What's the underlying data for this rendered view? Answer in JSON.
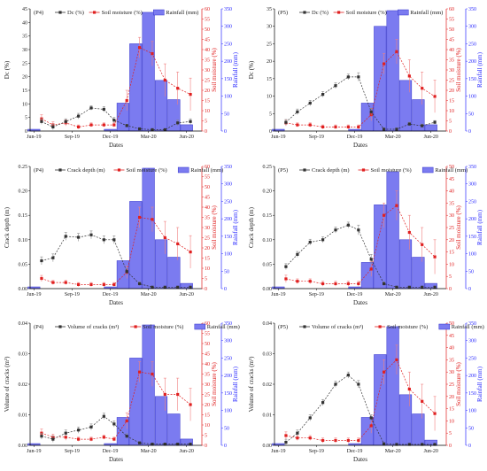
{
  "colors": {
    "dc": "#333333",
    "soil": "#e02020",
    "rain_fill": "#7b7bf0",
    "rain_edge": "#3333cc",
    "axis_right_red": "#e02020",
    "axis_right_blue": "#2a2aff"
  },
  "legend": {
    "soil": "Soil moisture (%)",
    "rain": "Rainfall (mm)"
  },
  "chart_data": [
    {
      "type": "bar+line",
      "panel": "P4",
      "tag": "(P4)",
      "primary_label": "Dc (%)",
      "legend_primary": "Dc (%)",
      "ylabel": "Dc (%)",
      "ylabel_soil": "Soil moisture (%)",
      "ylabel_rain": "Rainfall (mm)",
      "xlabel": "Dates",
      "ylim": [
        0,
        45
      ],
      "yticks": [
        0,
        5,
        10,
        15,
        20,
        25,
        30,
        35,
        40,
        45
      ],
      "ytick_labels": [
        "0",
        "5",
        "10",
        "15",
        "20",
        "25",
        "30",
        "35",
        "40",
        "45"
      ],
      "soil_lim": [
        0,
        60
      ],
      "soil_ticks": [
        0,
        5,
        10,
        15,
        20,
        25,
        30,
        35,
        40,
        45,
        50,
        55,
        60
      ],
      "rain_lim": [
        0,
        350
      ],
      "rain_ticks": [
        0,
        50,
        100,
        150,
        200,
        250,
        300,
        350
      ],
      "x_tick_labels": [
        "Jun-19",
        "Sep-19",
        "Dec-19",
        "Mar-20",
        "Jun-20"
      ],
      "x_tick_pos": [
        0,
        3,
        6,
        9,
        12
      ],
      "bar_months": [
        0,
        1,
        2,
        3,
        4,
        5,
        6,
        7,
        8,
        9,
        10,
        11,
        12
      ],
      "rainfall": [
        5,
        0,
        0,
        0,
        0,
        0,
        5,
        80,
        250,
        340,
        145,
        90,
        18
      ],
      "primary_x": [
        0.6,
        1.5,
        2.5,
        3.5,
        4.5,
        5.5,
        6.3,
        7.3,
        8.3,
        9.3,
        10.3,
        11.3,
        12.3
      ],
      "primary": [
        3.5,
        1.5,
        3.5,
        5.5,
        8.5,
        8,
        4,
        2,
        0.8,
        0.5,
        0.5,
        3,
        3.5
      ],
      "primary_err": [
        1,
        1,
        1,
        1,
        0.8,
        1,
        1,
        0.5,
        0.4,
        0.3,
        0.3,
        1,
        1
      ],
      "soil_x": [
        0.6,
        1.5,
        2.5,
        3.5,
        4.5,
        5.5,
        6.3,
        7.3,
        8.3,
        9.3,
        10.3,
        11.3,
        12.3
      ],
      "soil": [
        6,
        3,
        4,
        2,
        3,
        3,
        3,
        15,
        41,
        38,
        25,
        21,
        18
      ],
      "soil_err": [
        2,
        1.5,
        1.5,
        1,
        1,
        1,
        1,
        5,
        5,
        6,
        8,
        8,
        8
      ]
    },
    {
      "type": "bar+line",
      "panel": "P5",
      "tag": "(P5)",
      "primary_label": "Dc (%)",
      "legend_primary": "Dc (%)",
      "ylabel": "Dc (%)",
      "ylabel_soil": "Soil moisture (%)",
      "ylabel_rain": "Rainfall (mm)",
      "xlabel": "Dates",
      "ylim": [
        0,
        35
      ],
      "yticks": [
        0,
        5,
        10,
        15,
        20,
        25,
        30,
        35
      ],
      "ytick_labels": [
        "0",
        "5",
        "10",
        "15",
        "20",
        "25",
        "30",
        "35"
      ],
      "soil_lim": [
        0,
        60
      ],
      "soil_ticks": [
        0,
        5,
        10,
        15,
        20,
        25,
        30,
        35,
        40,
        45,
        50,
        55,
        60
      ],
      "rain_lim": [
        0,
        350
      ],
      "rain_ticks": [
        0,
        50,
        100,
        150,
        200,
        250,
        300,
        350
      ],
      "x_tick_labels": [
        "Jun-19",
        "Sep-19",
        "Dec-19",
        "Mar-20",
        "Jun-20"
      ],
      "x_tick_pos": [
        0,
        3,
        6,
        9,
        12
      ],
      "bar_months": [
        0,
        1,
        2,
        3,
        4,
        5,
        6,
        7,
        8,
        9,
        10,
        11,
        12
      ],
      "rainfall": [
        5,
        0,
        0,
        0,
        0,
        0,
        5,
        80,
        300,
        345,
        145,
        90,
        18
      ],
      "primary_x": [
        0.6,
        1.5,
        2.5,
        3.5,
        4.5,
        5.5,
        6.3,
        7.3,
        8.3,
        9.3,
        10.3,
        11.3,
        12.3
      ],
      "primary": [
        2.5,
        5.5,
        8,
        10.5,
        13,
        15.5,
        15.5,
        5.5,
        0.5,
        0.5,
        2,
        1.5,
        2.5
      ],
      "primary_err": [
        0.8,
        0.8,
        0.8,
        0.8,
        0.8,
        0.8,
        1.2,
        1,
        0.4,
        0.4,
        0.5,
        0.5,
        0.5
      ],
      "soil_x": [
        0.6,
        1.5,
        2.5,
        3.5,
        4.5,
        5.5,
        6.3,
        7.3,
        8.3,
        9.3,
        10.3,
        11.3,
        12.3
      ],
      "soil": [
        4,
        3,
        3,
        2,
        2,
        2,
        2,
        8,
        33,
        39,
        27,
        21,
        17
      ],
      "soil_err": [
        1.5,
        1,
        1,
        1,
        1,
        1,
        1,
        3,
        5,
        6,
        8,
        8,
        8
      ]
    },
    {
      "type": "bar+line",
      "panel": "P4",
      "tag": "(P4)",
      "primary_label": "Crack depth (m)",
      "legend_primary": "Crack depth (m)",
      "ylabel": "Crack depth (m)",
      "ylabel_soil": "Soil moisture (%)",
      "ylabel_rain": "Rainfall (mm)",
      "xlabel": "Dates",
      "ylim": [
        0,
        0.25
      ],
      "yticks": [
        0,
        0.05,
        0.1,
        0.15,
        0.2,
        0.25
      ],
      "ytick_labels": [
        "0.00",
        "0.05",
        "0.10",
        "0.15",
        "0.20",
        "0.25"
      ],
      "soil_lim": [
        0,
        60
      ],
      "soil_ticks": [
        0,
        5,
        10,
        15,
        20,
        25,
        30,
        35,
        40,
        45,
        50,
        55,
        60
      ],
      "rain_lim": [
        0,
        350
      ],
      "rain_ticks": [
        0,
        50,
        100,
        150,
        200,
        250,
        300,
        350
      ],
      "x_tick_labels": [
        "Jun-19",
        "Sep-19",
        "Dec-19",
        "Mar-20",
        "Jun-20"
      ],
      "x_tick_pos": [
        0,
        3,
        6,
        9,
        12
      ],
      "bar_months": [
        0,
        1,
        2,
        3,
        4,
        5,
        6,
        7,
        8,
        9,
        10,
        11,
        12
      ],
      "rainfall": [
        5,
        0,
        0,
        0,
        0,
        0,
        5,
        80,
        250,
        345,
        140,
        90,
        15
      ],
      "primary_x": [
        0.6,
        1.5,
        2.5,
        3.5,
        4.5,
        5.5,
        6.3,
        7.3,
        8.3,
        9.3,
        10.3,
        11.3,
        12.3
      ],
      "primary": [
        0.057,
        0.063,
        0.107,
        0.105,
        0.11,
        0.1,
        0.1,
        0.035,
        0.01,
        0.003,
        0.003,
        0.003,
        0.003
      ],
      "primary_err": [
        0.008,
        0.008,
        0.008,
        0.008,
        0.008,
        0.008,
        0.008,
        0.006,
        0.004,
        0.002,
        0.002,
        0.002,
        0.002
      ],
      "soil_x": [
        0.6,
        1.5,
        2.5,
        3.5,
        4.5,
        5.5,
        6.3,
        7.3,
        8.3,
        9.3,
        10.3,
        11.3,
        12.3
      ],
      "soil": [
        5,
        3,
        3,
        2,
        2,
        2,
        2,
        8,
        35,
        34,
        25,
        22,
        18
      ],
      "soil_err": [
        1.5,
        1,
        1,
        1,
        1,
        1,
        1,
        3,
        5,
        6,
        8,
        8,
        8
      ]
    },
    {
      "type": "bar+line",
      "panel": "P5",
      "tag": "(P5)",
      "primary_label": "Crack depth (m)",
      "legend_primary": "Crack depth (m)",
      "ylabel": "Crack depth (m)",
      "ylabel_soil": "Soil moisture (%)",
      "ylabel_rain": "Rainfall (mm)",
      "xlabel": "Dates",
      "ylim": [
        0,
        0.25
      ],
      "yticks": [
        0,
        0.05,
        0.1,
        0.15,
        0.2,
        0.25
      ],
      "ytick_labels": [
        "0.00",
        "0.05",
        "0.10",
        "0.15",
        "0.20",
        "0.25"
      ],
      "soil_lim": [
        0,
        50
      ],
      "soil_ticks": [
        0,
        5,
        10,
        15,
        20,
        25,
        30,
        35,
        40,
        45,
        50
      ],
      "rain_lim": [
        0,
        350
      ],
      "rain_ticks": [
        0,
        50,
        100,
        150,
        200,
        250,
        300,
        350
      ],
      "x_tick_labels": [
        "Jun-19",
        "Sep-19",
        "Dec-19",
        "Mar-20",
        "Jun-20"
      ],
      "x_tick_pos": [
        0,
        3,
        6,
        9,
        12
      ],
      "bar_months": [
        0,
        1,
        2,
        3,
        4,
        5,
        6,
        7,
        8,
        9,
        10,
        11,
        12
      ],
      "rainfall": [
        5,
        0,
        0,
        0,
        0,
        0,
        5,
        75,
        240,
        335,
        140,
        90,
        15
      ],
      "primary_x": [
        0.6,
        1.5,
        2.5,
        3.5,
        4.5,
        5.5,
        6.3,
        7.3,
        8.3,
        9.3,
        10.3,
        11.3,
        12.3
      ],
      "primary": [
        0.045,
        0.07,
        0.095,
        0.1,
        0.12,
        0.13,
        0.12,
        0.06,
        0.01,
        0.003,
        0.003,
        0.003,
        0.003
      ],
      "primary_err": [
        0.006,
        0.006,
        0.006,
        0.006,
        0.006,
        0.006,
        0.01,
        0.01,
        0.004,
        0.002,
        0.002,
        0.002,
        0.002
      ],
      "soil_x": [
        0.6,
        1.5,
        2.5,
        3.5,
        4.5,
        5.5,
        6.3,
        7.3,
        8.3,
        9.3,
        10.3,
        11.3,
        12.3
      ],
      "soil": [
        4,
        3,
        3,
        2,
        2,
        2,
        2,
        8,
        30,
        34,
        23,
        18,
        13
      ],
      "soil_err": [
        1.5,
        1,
        1,
        1,
        1,
        1,
        1,
        3,
        5,
        6,
        7,
        7,
        7
      ]
    },
    {
      "type": "bar+line",
      "panel": "P4",
      "tag": "(P4)",
      "primary_label": "Volume of cracks (m³)",
      "legend_primary": "Volume of cracks (m³)",
      "ylabel": "Volume of cracks (m³)",
      "ylabel_soil": "Soil moisture (%)",
      "ylabel_rain": "Rainfall (mm)",
      "xlabel": "Dates",
      "ylim": [
        0,
        0.04
      ],
      "yticks": [
        0,
        0.01,
        0.02,
        0.03,
        0.04
      ],
      "ytick_labels": [
        "0.00",
        "0.01",
        "0.02",
        "0.03",
        "0.04"
      ],
      "soil_lim": [
        0,
        60
      ],
      "soil_ticks": [
        0,
        5,
        10,
        15,
        20,
        25,
        30,
        35,
        40,
        45,
        50,
        55,
        60
      ],
      "rain_lim": [
        0,
        350
      ],
      "rain_ticks": [
        0,
        50,
        100,
        150,
        200,
        250,
        300,
        350
      ],
      "x_tick_labels": [
        "Jun-19",
        "Sep-19",
        "Dec-19",
        "Mar-20",
        "Jun-20"
      ],
      "x_tick_pos": [
        0,
        3,
        6,
        9,
        12
      ],
      "bar_months": [
        0,
        1,
        2,
        3,
        4,
        5,
        6,
        7,
        8,
        9,
        10,
        11,
        12
      ],
      "rainfall": [
        5,
        0,
        0,
        0,
        0,
        0,
        5,
        80,
        250,
        345,
        140,
        90,
        18
      ],
      "primary_x": [
        0.6,
        1.5,
        2.5,
        3.5,
        4.5,
        5.5,
        6.3,
        7.3,
        8.3,
        9.3,
        10.3,
        11.3,
        12.3
      ],
      "primary": [
        0.003,
        0.002,
        0.004,
        0.005,
        0.006,
        0.0095,
        0.007,
        0.003,
        0.0008,
        0.0004,
        0.0004,
        0.0004,
        0.0004
      ],
      "primary_err": [
        0.001,
        0.001,
        0.001,
        0.001,
        0.001,
        0.001,
        0.001,
        0.0008,
        0.0004,
        0.0002,
        0.0002,
        0.0002,
        0.0002
      ],
      "soil_x": [
        0.6,
        1.5,
        2.5,
        3.5,
        4.5,
        5.5,
        6.3,
        7.3,
        8.3,
        9.3,
        10.3,
        11.3,
        12.3
      ],
      "soil": [
        6,
        4,
        4,
        3,
        3,
        4,
        3,
        12,
        36,
        35,
        25,
        25,
        20
      ],
      "soil_err": [
        2,
        1.5,
        1.5,
        1,
        1,
        1,
        1,
        4,
        5,
        6,
        8,
        8,
        8
      ]
    },
    {
      "type": "bar+line",
      "panel": "P5",
      "tag": "(P5)",
      "primary_label": "Volume of cracks (m³)",
      "legend_primary": "Volume of cracks (m³)",
      "ylabel": "Volume of cracks (m³)",
      "ylabel_soil": "Soil moisture (%)",
      "ylabel_rain": "Rainfall (mm)",
      "xlabel": "Dates",
      "ylim": [
        0,
        0.04
      ],
      "yticks": [
        0,
        0.01,
        0.02,
        0.03,
        0.04
      ],
      "ytick_labels": [
        "0.00",
        "0.01",
        "0.02",
        "0.03",
        "0.04"
      ],
      "soil_lim": [
        0,
        50
      ],
      "soil_ticks": [
        0,
        5,
        10,
        15,
        20,
        25,
        30,
        35,
        40,
        45,
        50
      ],
      "rain_lim": [
        0,
        350
      ],
      "rain_ticks": [
        0,
        50,
        100,
        150,
        200,
        250,
        300,
        350
      ],
      "x_tick_labels": [
        "Jun-19",
        "Sep-19",
        "Dec-19",
        "Mar-20",
        "Jun-20"
      ],
      "x_tick_pos": [
        0,
        3,
        6,
        9,
        12
      ],
      "bar_months": [
        0,
        1,
        2,
        3,
        4,
        5,
        6,
        7,
        8,
        9,
        10,
        11,
        12
      ],
      "rainfall": [
        5,
        0,
        0,
        0,
        0,
        0,
        5,
        80,
        260,
        340,
        145,
        90,
        15
      ],
      "primary_x": [
        0.6,
        1.5,
        2.5,
        3.5,
        4.5,
        5.5,
        6.3,
        7.3,
        8.3,
        9.3,
        10.3,
        11.3,
        12.3
      ],
      "primary": [
        0.001,
        0.004,
        0.009,
        0.014,
        0.02,
        0.023,
        0.02,
        0.009,
        0.0005,
        0.0003,
        0.0003,
        0.0003,
        0.0003
      ],
      "primary_err": [
        0.001,
        0.001,
        0.001,
        0.001,
        0.001,
        0.001,
        0.0012,
        0.001,
        0.0003,
        0.0002,
        0.0002,
        0.0002,
        0.0002
      ],
      "soil_x": [
        0.6,
        1.5,
        2.5,
        3.5,
        4.5,
        5.5,
        6.3,
        7.3,
        8.3,
        9.3,
        10.3,
        11.3,
        12.3
      ],
      "soil": [
        4,
        3,
        3,
        2,
        2,
        2,
        2,
        8,
        30,
        35,
        23,
        18,
        13
      ],
      "soil_err": [
        1.5,
        1,
        1,
        1,
        1,
        1,
        1,
        3,
        5,
        6,
        7,
        7,
        7
      ]
    }
  ]
}
